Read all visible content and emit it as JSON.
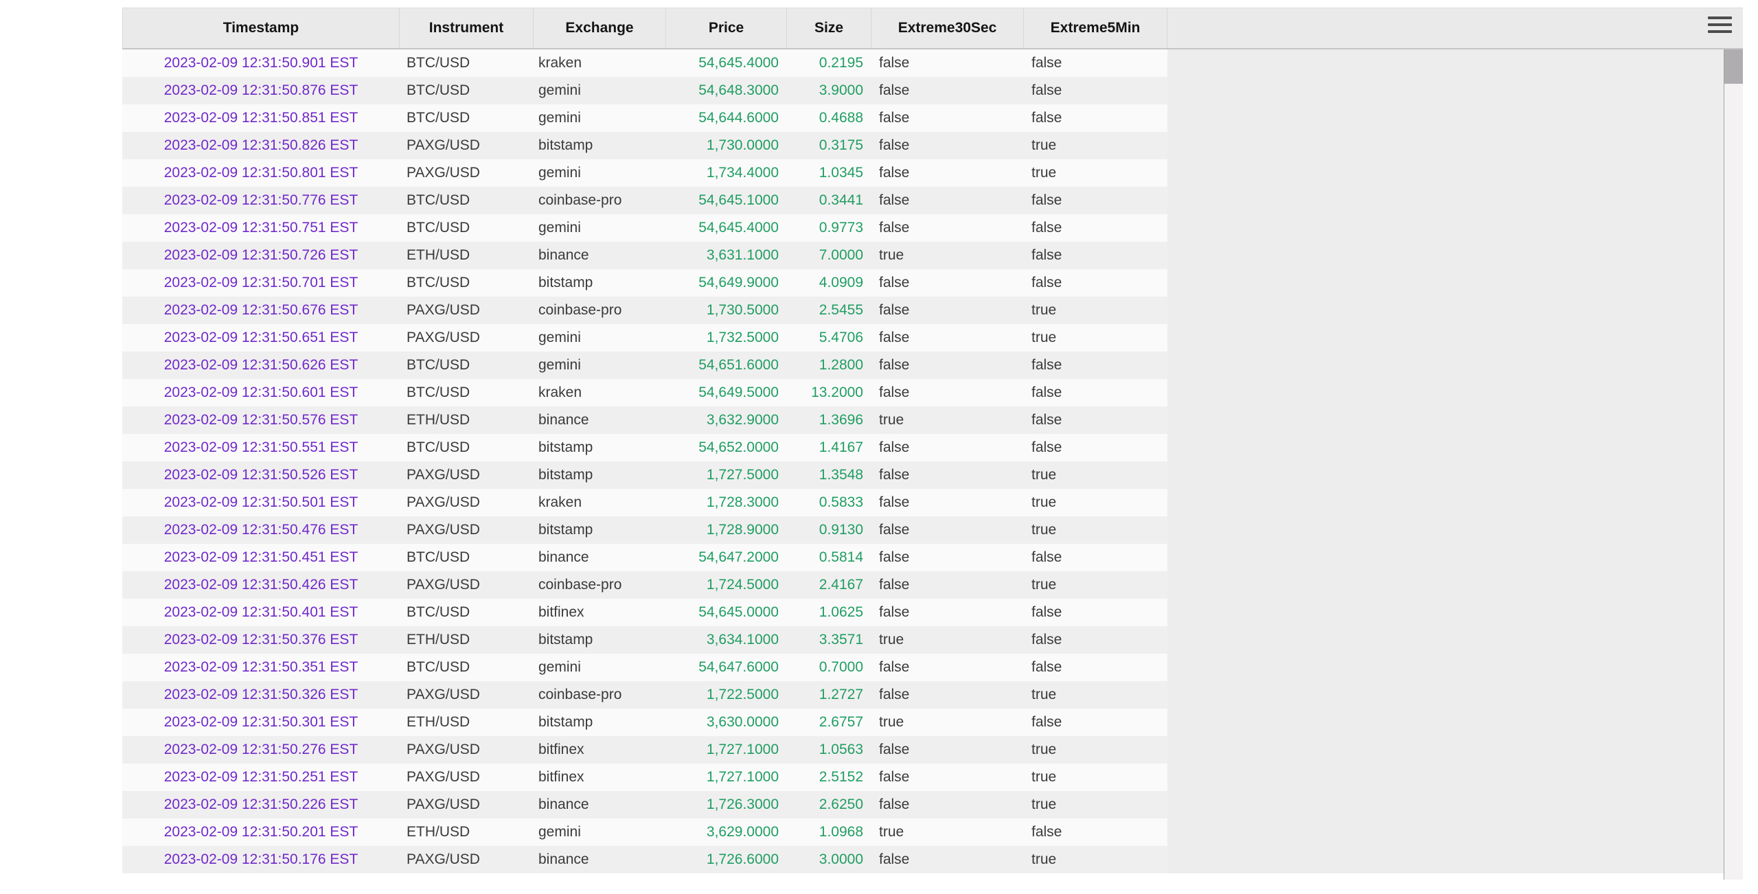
{
  "colors": {
    "timestamp_text": "#7029c9",
    "numeric_text": "#1f9e61"
  },
  "window": {
    "menu_icon": "hamburger-menu"
  },
  "table": {
    "columns": [
      "Timestamp",
      "Instrument",
      "Exchange",
      "Price",
      "Size",
      "Extreme30Sec",
      "Extreme5Min"
    ],
    "rows": [
      {
        "timestamp": "2023-02-09 12:31:50.901 EST",
        "instrument": "BTC/USD",
        "exchange": "kraken",
        "price": "54,645.4000",
        "size": "0.2195",
        "extreme30sec": "false",
        "extreme5min": "false"
      },
      {
        "timestamp": "2023-02-09 12:31:50.876 EST",
        "instrument": "BTC/USD",
        "exchange": "gemini",
        "price": "54,648.3000",
        "size": "3.9000",
        "extreme30sec": "false",
        "extreme5min": "false"
      },
      {
        "timestamp": "2023-02-09 12:31:50.851 EST",
        "instrument": "BTC/USD",
        "exchange": "gemini",
        "price": "54,644.6000",
        "size": "0.4688",
        "extreme30sec": "false",
        "extreme5min": "false"
      },
      {
        "timestamp": "2023-02-09 12:31:50.826 EST",
        "instrument": "PAXG/USD",
        "exchange": "bitstamp",
        "price": "1,730.0000",
        "size": "0.3175",
        "extreme30sec": "false",
        "extreme5min": "true"
      },
      {
        "timestamp": "2023-02-09 12:31:50.801 EST",
        "instrument": "PAXG/USD",
        "exchange": "gemini",
        "price": "1,734.4000",
        "size": "1.0345",
        "extreme30sec": "false",
        "extreme5min": "true"
      },
      {
        "timestamp": "2023-02-09 12:31:50.776 EST",
        "instrument": "BTC/USD",
        "exchange": "coinbase-pro",
        "price": "54,645.1000",
        "size": "0.3441",
        "extreme30sec": "false",
        "extreme5min": "false"
      },
      {
        "timestamp": "2023-02-09 12:31:50.751 EST",
        "instrument": "BTC/USD",
        "exchange": "gemini",
        "price": "54,645.4000",
        "size": "0.9773",
        "extreme30sec": "false",
        "extreme5min": "false"
      },
      {
        "timestamp": "2023-02-09 12:31:50.726 EST",
        "instrument": "ETH/USD",
        "exchange": "binance",
        "price": "3,631.1000",
        "size": "7.0000",
        "extreme30sec": "true",
        "extreme5min": "false"
      },
      {
        "timestamp": "2023-02-09 12:31:50.701 EST",
        "instrument": "BTC/USD",
        "exchange": "bitstamp",
        "price": "54,649.9000",
        "size": "4.0909",
        "extreme30sec": "false",
        "extreme5min": "false"
      },
      {
        "timestamp": "2023-02-09 12:31:50.676 EST",
        "instrument": "PAXG/USD",
        "exchange": "coinbase-pro",
        "price": "1,730.5000",
        "size": "2.5455",
        "extreme30sec": "false",
        "extreme5min": "true"
      },
      {
        "timestamp": "2023-02-09 12:31:50.651 EST",
        "instrument": "PAXG/USD",
        "exchange": "gemini",
        "price": "1,732.5000",
        "size": "5.4706",
        "extreme30sec": "false",
        "extreme5min": "true"
      },
      {
        "timestamp": "2023-02-09 12:31:50.626 EST",
        "instrument": "BTC/USD",
        "exchange": "gemini",
        "price": "54,651.6000",
        "size": "1.2800",
        "extreme30sec": "false",
        "extreme5min": "false"
      },
      {
        "timestamp": "2023-02-09 12:31:50.601 EST",
        "instrument": "BTC/USD",
        "exchange": "kraken",
        "price": "54,649.5000",
        "size": "13.2000",
        "extreme30sec": "false",
        "extreme5min": "false"
      },
      {
        "timestamp": "2023-02-09 12:31:50.576 EST",
        "instrument": "ETH/USD",
        "exchange": "binance",
        "price": "3,632.9000",
        "size": "1.3696",
        "extreme30sec": "true",
        "extreme5min": "false"
      },
      {
        "timestamp": "2023-02-09 12:31:50.551 EST",
        "instrument": "BTC/USD",
        "exchange": "bitstamp",
        "price": "54,652.0000",
        "size": "1.4167",
        "extreme30sec": "false",
        "extreme5min": "false"
      },
      {
        "timestamp": "2023-02-09 12:31:50.526 EST",
        "instrument": "PAXG/USD",
        "exchange": "bitstamp",
        "price": "1,727.5000",
        "size": "1.3548",
        "extreme30sec": "false",
        "extreme5min": "true"
      },
      {
        "timestamp": "2023-02-09 12:31:50.501 EST",
        "instrument": "PAXG/USD",
        "exchange": "kraken",
        "price": "1,728.3000",
        "size": "0.5833",
        "extreme30sec": "false",
        "extreme5min": "true"
      },
      {
        "timestamp": "2023-02-09 12:31:50.476 EST",
        "instrument": "PAXG/USD",
        "exchange": "bitstamp",
        "price": "1,728.9000",
        "size": "0.9130",
        "extreme30sec": "false",
        "extreme5min": "true"
      },
      {
        "timestamp": "2023-02-09 12:31:50.451 EST",
        "instrument": "BTC/USD",
        "exchange": "binance",
        "price": "54,647.2000",
        "size": "0.5814",
        "extreme30sec": "false",
        "extreme5min": "false"
      },
      {
        "timestamp": "2023-02-09 12:31:50.426 EST",
        "instrument": "PAXG/USD",
        "exchange": "coinbase-pro",
        "price": "1,724.5000",
        "size": "2.4167",
        "extreme30sec": "false",
        "extreme5min": "true"
      },
      {
        "timestamp": "2023-02-09 12:31:50.401 EST",
        "instrument": "BTC/USD",
        "exchange": "bitfinex",
        "price": "54,645.0000",
        "size": "1.0625",
        "extreme30sec": "false",
        "extreme5min": "false"
      },
      {
        "timestamp": "2023-02-09 12:31:50.376 EST",
        "instrument": "ETH/USD",
        "exchange": "bitstamp",
        "price": "3,634.1000",
        "size": "3.3571",
        "extreme30sec": "true",
        "extreme5min": "false"
      },
      {
        "timestamp": "2023-02-09 12:31:50.351 EST",
        "instrument": "BTC/USD",
        "exchange": "gemini",
        "price": "54,647.6000",
        "size": "0.7000",
        "extreme30sec": "false",
        "extreme5min": "false"
      },
      {
        "timestamp": "2023-02-09 12:31:50.326 EST",
        "instrument": "PAXG/USD",
        "exchange": "coinbase-pro",
        "price": "1,722.5000",
        "size": "1.2727",
        "extreme30sec": "false",
        "extreme5min": "true"
      },
      {
        "timestamp": "2023-02-09 12:31:50.301 EST",
        "instrument": "ETH/USD",
        "exchange": "bitstamp",
        "price": "3,630.0000",
        "size": "2.6757",
        "extreme30sec": "true",
        "extreme5min": "false"
      },
      {
        "timestamp": "2023-02-09 12:31:50.276 EST",
        "instrument": "PAXG/USD",
        "exchange": "bitfinex",
        "price": "1,727.1000",
        "size": "1.0563",
        "extreme30sec": "false",
        "extreme5min": "true"
      },
      {
        "timestamp": "2023-02-09 12:31:50.251 EST",
        "instrument": "PAXG/USD",
        "exchange": "bitfinex",
        "price": "1,727.1000",
        "size": "2.5152",
        "extreme30sec": "false",
        "extreme5min": "true"
      },
      {
        "timestamp": "2023-02-09 12:31:50.226 EST",
        "instrument": "PAXG/USD",
        "exchange": "binance",
        "price": "1,726.3000",
        "size": "2.6250",
        "extreme30sec": "false",
        "extreme5min": "true"
      },
      {
        "timestamp": "2023-02-09 12:31:50.201 EST",
        "instrument": "ETH/USD",
        "exchange": "gemini",
        "price": "3,629.0000",
        "size": "1.0968",
        "extreme30sec": "true",
        "extreme5min": "false"
      },
      {
        "timestamp": "2023-02-09 12:31:50.176 EST",
        "instrument": "PAXG/USD",
        "exchange": "binance",
        "price": "1,726.6000",
        "size": "3.0000",
        "extreme30sec": "false",
        "extreme5min": "true"
      }
    ]
  }
}
